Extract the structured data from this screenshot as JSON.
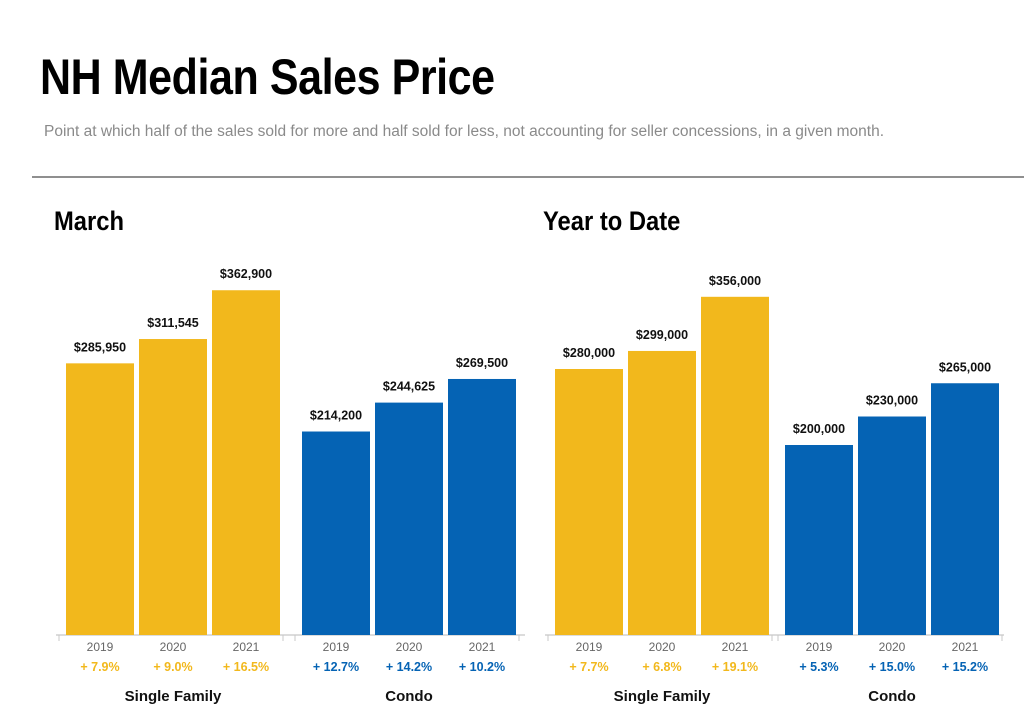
{
  "title": "NH Median Sales Price",
  "subtitle": "Point at which half of the sales sold for more and half sold for less, not accounting for seller concessions, in a given month.",
  "colors": {
    "single_family": "#f2b81c",
    "condo": "#0563b4",
    "axis": "#c8c8c8"
  },
  "chart_data": [
    {
      "type": "bar",
      "title": "March",
      "categories": [
        "2019",
        "2020",
        "2021"
      ],
      "series": [
        {
          "name": "Single Family",
          "values": [
            285950,
            311545,
            362900
          ],
          "labels": [
            "$285,950",
            "$311,545",
            "$362,900"
          ],
          "changes": [
            "+ 7.9%",
            "+ 9.0%",
            "+ 16.5%"
          ]
        },
        {
          "name": "Condo",
          "values": [
            214200,
            244625,
            269500
          ],
          "labels": [
            "$214,200",
            "$244,625",
            "$269,500"
          ],
          "changes": [
            "+ 12.7%",
            "+ 14.2%",
            "+ 10.2%"
          ]
        }
      ],
      "ylim": [
        0,
        400000
      ]
    },
    {
      "type": "bar",
      "title": "Year to Date",
      "categories": [
        "2019",
        "2020",
        "2021"
      ],
      "series": [
        {
          "name": "Single Family",
          "values": [
            280000,
            299000,
            356000
          ],
          "labels": [
            "$280,000",
            "$299,000",
            "$356,000"
          ],
          "changes": [
            "+ 7.7%",
            "+ 6.8%",
            "+ 19.1%"
          ]
        },
        {
          "name": "Condo",
          "values": [
            200000,
            230000,
            265000
          ],
          "labels": [
            "$200,000",
            "$230,000",
            "$265,000"
          ],
          "changes": [
            "+ 5.3%",
            "+ 15.0%",
            "+ 15.2%"
          ]
        }
      ],
      "ylim": [
        0,
        400000
      ]
    }
  ]
}
